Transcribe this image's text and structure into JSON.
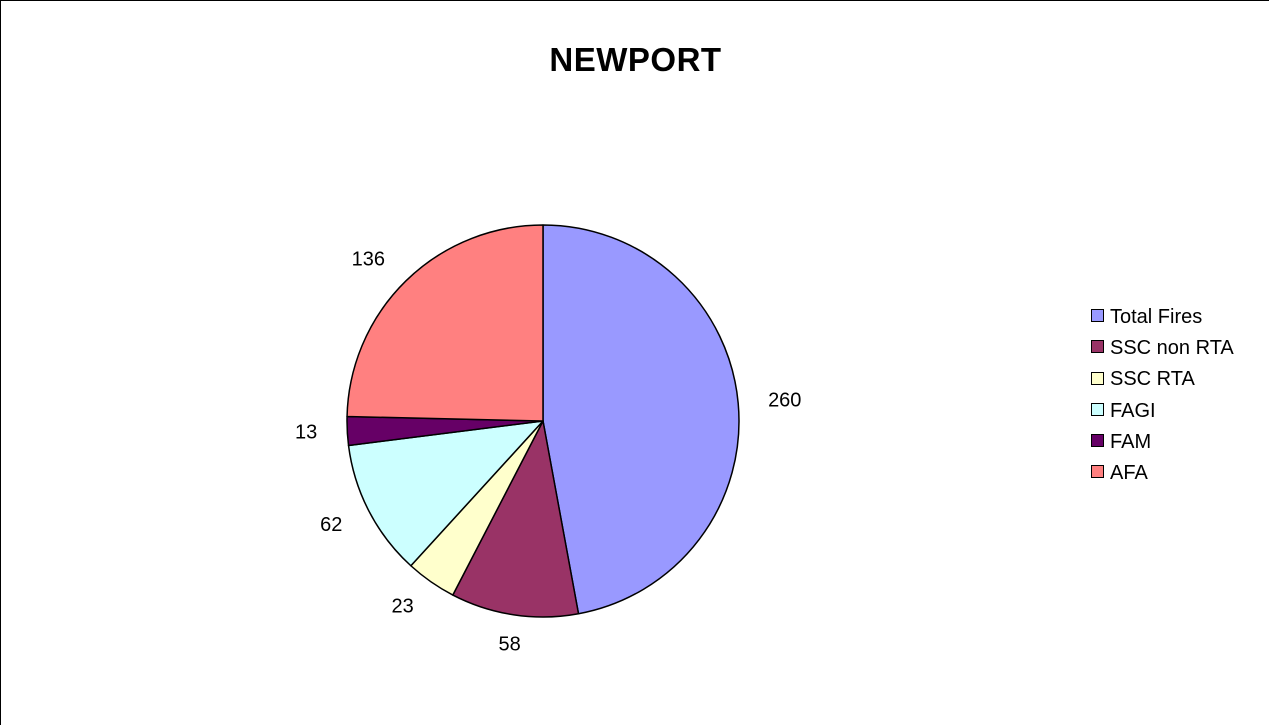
{
  "chart_data": {
    "type": "pie",
    "title": "NEWPORT",
    "categories": [
      "Total Fires",
      "SSC non RTA",
      "SSC RTA",
      "FAGI",
      "FAM",
      "AFA"
    ],
    "values": [
      260,
      58,
      23,
      62,
      13,
      136
    ],
    "colors": [
      "#9999FF",
      "#993366",
      "#FFFFCC",
      "#CCFFFF",
      "#660066",
      "#FF8080"
    ],
    "data_labels": [
      "260",
      "58",
      "23",
      "62",
      "13",
      "136"
    ],
    "legend_position": "right"
  }
}
